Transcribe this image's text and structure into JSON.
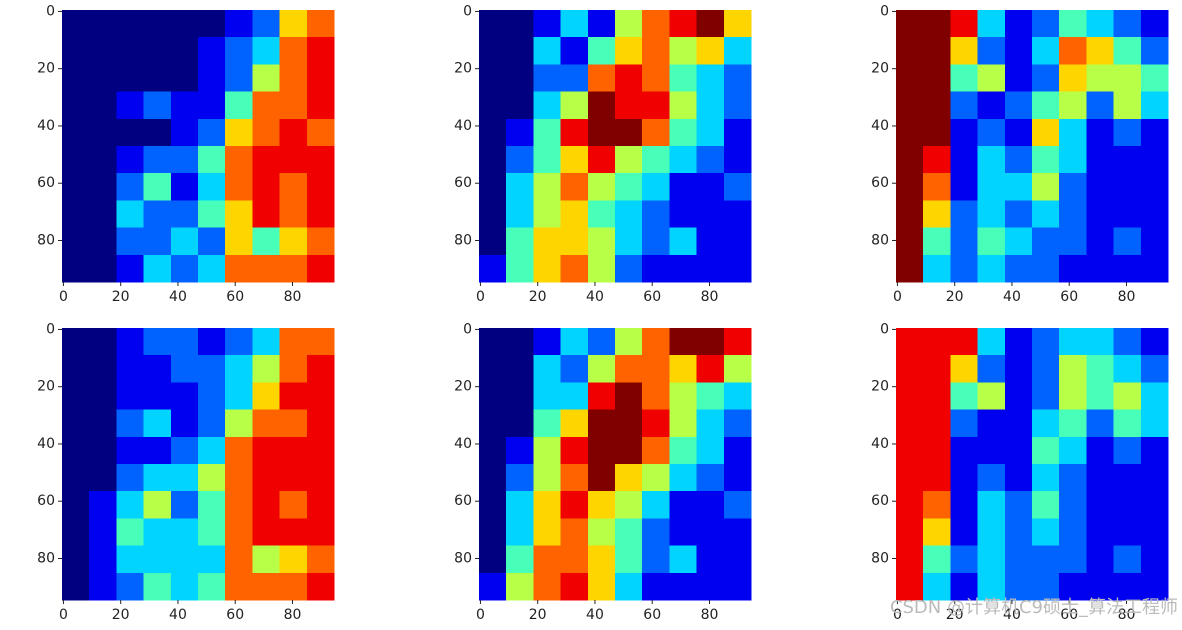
{
  "chart_data": [
    {
      "type": "heatmap",
      "colormap": "jet",
      "zlim": [
        0,
        9
      ],
      "xlim": [
        -0.5,
        94.5
      ],
      "ylim": [
        94.5,
        -0.5
      ],
      "xticks": [
        0,
        20,
        40,
        60,
        80
      ],
      "yticks": [
        0,
        20,
        40,
        60,
        80
      ],
      "values": [
        [
          0,
          0,
          0,
          0,
          0,
          0,
          1,
          2,
          6,
          7
        ],
        [
          0,
          0,
          0,
          0,
          0,
          1,
          2,
          3,
          7,
          8
        ],
        [
          0,
          0,
          0,
          0,
          0,
          1,
          2,
          5,
          7,
          8
        ],
        [
          0,
          0,
          1,
          2,
          1,
          1,
          4,
          7,
          7,
          8
        ],
        [
          0,
          0,
          0,
          0,
          1,
          2,
          6,
          7,
          8,
          7
        ],
        [
          0,
          0,
          1,
          2,
          2,
          4,
          7,
          8,
          8,
          8
        ],
        [
          0,
          0,
          2,
          4,
          1,
          3,
          7,
          8,
          7,
          8
        ],
        [
          0,
          0,
          3,
          2,
          2,
          4,
          6,
          8,
          7,
          8
        ],
        [
          0,
          0,
          2,
          2,
          3,
          2,
          6,
          4,
          6,
          7
        ],
        [
          0,
          0,
          1,
          3,
          2,
          3,
          7,
          7,
          7,
          8
        ]
      ]
    },
    {
      "type": "heatmap",
      "colormap": "jet",
      "zlim": [
        0,
        9
      ],
      "xlim": [
        -0.5,
        94.5
      ],
      "ylim": [
        94.5,
        -0.5
      ],
      "xticks": [
        0,
        20,
        40,
        60,
        80
      ],
      "yticks": [
        0,
        20,
        40,
        60,
        80
      ],
      "values": [
        [
          0,
          0,
          1,
          3,
          1,
          5,
          7,
          8,
          9,
          6
        ],
        [
          0,
          0,
          3,
          1,
          4,
          6,
          7,
          5,
          6,
          3
        ],
        [
          0,
          0,
          2,
          2,
          7,
          8,
          7,
          4,
          3,
          2
        ],
        [
          0,
          0,
          3,
          5,
          9,
          8,
          8,
          5,
          3,
          2
        ],
        [
          0,
          1,
          4,
          8,
          9,
          9,
          7,
          4,
          3,
          1
        ],
        [
          0,
          2,
          4,
          6,
          8,
          5,
          4,
          3,
          2,
          1
        ],
        [
          0,
          3,
          5,
          7,
          5,
          4,
          3,
          1,
          1,
          2
        ],
        [
          0,
          3,
          5,
          6,
          4,
          3,
          2,
          1,
          1,
          1
        ],
        [
          0,
          4,
          6,
          6,
          5,
          3,
          2,
          3,
          1,
          1
        ],
        [
          1,
          4,
          6,
          7,
          5,
          2,
          1,
          1,
          1,
          1
        ]
      ]
    },
    {
      "type": "heatmap",
      "colormap": "jet",
      "zlim": [
        0,
        9
      ],
      "xlim": [
        -0.5,
        94.5
      ],
      "ylim": [
        94.5,
        -0.5
      ],
      "xticks": [
        0,
        20,
        40,
        60,
        80
      ],
      "yticks": [
        0,
        20,
        40,
        60,
        80
      ],
      "values": [
        [
          9,
          9,
          8,
          3,
          1,
          2,
          4,
          3,
          2,
          1
        ],
        [
          9,
          9,
          6,
          2,
          1,
          3,
          7,
          6,
          4,
          2
        ],
        [
          9,
          9,
          4,
          5,
          1,
          2,
          6,
          5,
          5,
          4
        ],
        [
          9,
          9,
          2,
          1,
          2,
          4,
          5,
          2,
          5,
          3
        ],
        [
          9,
          9,
          1,
          2,
          1,
          6,
          3,
          1,
          2,
          1
        ],
        [
          9,
          8,
          1,
          3,
          2,
          4,
          3,
          1,
          1,
          1
        ],
        [
          9,
          7,
          1,
          3,
          3,
          5,
          2,
          1,
          1,
          1
        ],
        [
          9,
          6,
          2,
          3,
          2,
          3,
          2,
          1,
          1,
          1
        ],
        [
          9,
          4,
          2,
          4,
          3,
          2,
          2,
          1,
          2,
          1
        ],
        [
          9,
          3,
          2,
          3,
          2,
          2,
          1,
          1,
          1,
          1
        ]
      ]
    },
    {
      "type": "heatmap",
      "colormap": "jet",
      "zlim": [
        0,
        9
      ],
      "xlim": [
        -0.5,
        94.5
      ],
      "ylim": [
        94.5,
        -0.5
      ],
      "xticks": [
        0,
        20,
        40,
        60,
        80
      ],
      "yticks": [
        0,
        20,
        40,
        60,
        80
      ],
      "values": [
        [
          0,
          0,
          1,
          2,
          2,
          1,
          2,
          3,
          7,
          7
        ],
        [
          0,
          0,
          1,
          1,
          2,
          2,
          3,
          5,
          7,
          8
        ],
        [
          0,
          0,
          1,
          1,
          1,
          2,
          3,
          6,
          8,
          8
        ],
        [
          0,
          0,
          2,
          3,
          1,
          2,
          5,
          7,
          7,
          8
        ],
        [
          0,
          0,
          1,
          1,
          2,
          3,
          7,
          8,
          8,
          8
        ],
        [
          0,
          0,
          2,
          3,
          3,
          5,
          7,
          8,
          8,
          8
        ],
        [
          0,
          1,
          3,
          5,
          2,
          4,
          7,
          8,
          7,
          8
        ],
        [
          0,
          1,
          4,
          3,
          3,
          4,
          7,
          8,
          8,
          8
        ],
        [
          0,
          1,
          3,
          3,
          3,
          3,
          7,
          5,
          6,
          7
        ],
        [
          0,
          1,
          2,
          4,
          3,
          4,
          7,
          7,
          7,
          8
        ]
      ]
    },
    {
      "type": "heatmap",
      "colormap": "jet",
      "zlim": [
        0,
        9
      ],
      "xlim": [
        -0.5,
        94.5
      ],
      "ylim": [
        94.5,
        -0.5
      ],
      "xticks": [
        0,
        20,
        40,
        60,
        80
      ],
      "yticks": [
        0,
        20,
        40,
        60,
        80
      ],
      "values": [
        [
          0,
          0,
          1,
          3,
          2,
          5,
          7,
          9,
          9,
          8
        ],
        [
          0,
          0,
          3,
          2,
          5,
          7,
          7,
          6,
          8,
          5
        ],
        [
          0,
          0,
          3,
          3,
          8,
          9,
          7,
          5,
          4,
          3
        ],
        [
          0,
          0,
          4,
          6,
          9,
          9,
          8,
          5,
          3,
          2
        ],
        [
          0,
          1,
          5,
          8,
          9,
          9,
          7,
          4,
          3,
          1
        ],
        [
          0,
          2,
          5,
          7,
          9,
          6,
          5,
          3,
          2,
          1
        ],
        [
          0,
          3,
          6,
          8,
          6,
          5,
          3,
          1,
          1,
          2
        ],
        [
          0,
          3,
          6,
          7,
          5,
          4,
          2,
          1,
          1,
          1
        ],
        [
          0,
          4,
          7,
          7,
          6,
          4,
          2,
          3,
          1,
          1
        ],
        [
          1,
          5,
          7,
          8,
          6,
          3,
          1,
          1,
          1,
          1
        ]
      ]
    },
    {
      "type": "heatmap",
      "colormap": "jet",
      "zlim": [
        0,
        9
      ],
      "xlim": [
        -0.5,
        94.5
      ],
      "ylim": [
        94.5,
        -0.5
      ],
      "xticks": [
        0,
        20,
        40,
        60,
        80
      ],
      "yticks": [
        0,
        20,
        40,
        60,
        80
      ],
      "values": [
        [
          8,
          8,
          8,
          3,
          1,
          2,
          3,
          3,
          2,
          1
        ],
        [
          8,
          8,
          6,
          2,
          1,
          2,
          5,
          4,
          3,
          2
        ],
        [
          8,
          8,
          4,
          5,
          1,
          2,
          5,
          4,
          5,
          3
        ],
        [
          8,
          8,
          2,
          1,
          1,
          3,
          4,
          2,
          4,
          3
        ],
        [
          8,
          8,
          1,
          1,
          1,
          4,
          3,
          1,
          2,
          1
        ],
        [
          8,
          8,
          1,
          2,
          1,
          3,
          2,
          1,
          1,
          1
        ],
        [
          8,
          7,
          1,
          3,
          2,
          4,
          2,
          1,
          1,
          1
        ],
        [
          8,
          6,
          1,
          3,
          2,
          3,
          2,
          1,
          1,
          1
        ],
        [
          8,
          4,
          2,
          3,
          2,
          2,
          2,
          1,
          2,
          1
        ],
        [
          8,
          3,
          1,
          3,
          2,
          2,
          1,
          1,
          1,
          1
        ]
      ]
    }
  ],
  "watermark": "CSDN @计算机C9硕士_算法工程师"
}
